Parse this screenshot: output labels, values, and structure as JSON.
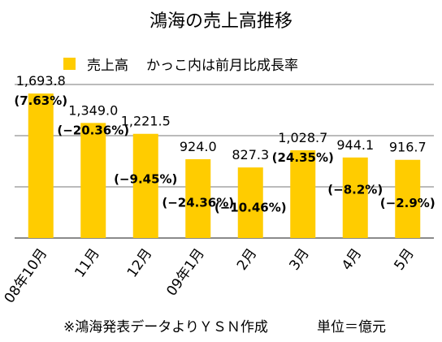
{
  "title": "鴻海の売上高推移",
  "legend": {
    "sales": "売上高",
    "note": "かっこ内は前月比成長率"
  },
  "footer": {
    "source": "※鴻海発表データよりＹＳＮ作成",
    "unit": "単位＝億元"
  },
  "colors": {
    "bar": "#ffcc00",
    "grid": "#777777"
  },
  "chart_data": {
    "type": "bar",
    "title": "鴻海の売上高推移",
    "categories": [
      "08年10月",
      "11月",
      "12月",
      "09年1月",
      "2月",
      "3月",
      "4月",
      "5月"
    ],
    "series": [
      {
        "name": "売上高",
        "values": [
          1693.8,
          1349.0,
          1221.5,
          924.0,
          827.3,
          1028.7,
          944.1,
          916.7
        ]
      }
    ],
    "value_labels": [
      "1,693.8",
      "1,349.0",
      "1,221.5",
      "924.0",
      "827.3",
      "1,028.7",
      "944.1",
      "916.7"
    ],
    "growth_labels": [
      "(7.63%)",
      "(−20.36%)",
      "(−9.45%)",
      "(−24.36%)",
      "(−10.46%)",
      "(24.35%)",
      "(−8.2%)",
      "(−2.9%)"
    ],
    "ylim": [
      0,
      1800
    ],
    "grid": true,
    "legend_position": "top"
  }
}
